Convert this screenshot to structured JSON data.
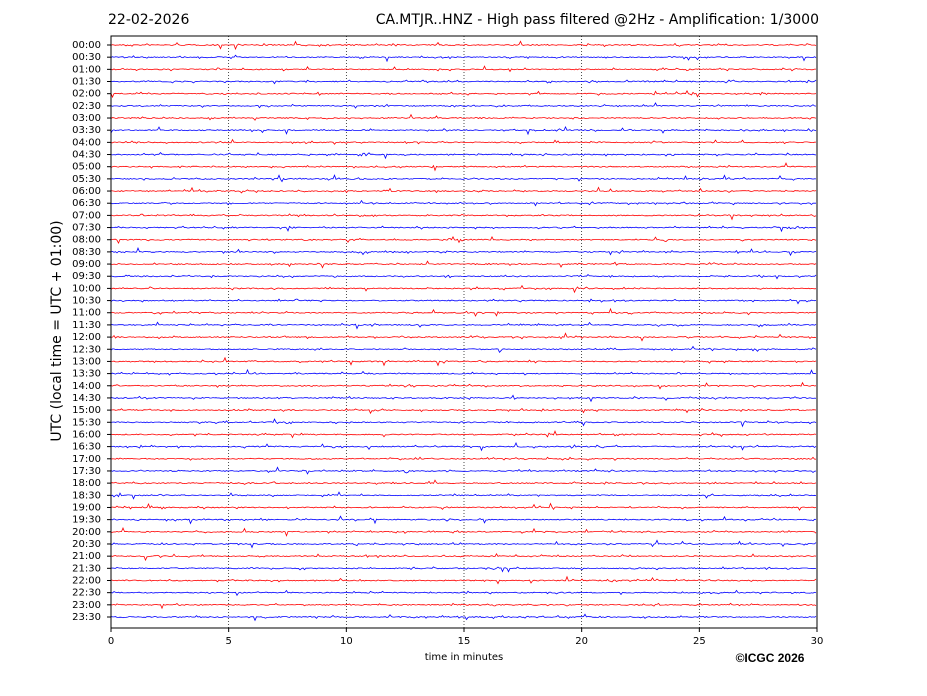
{
  "chart_data": {
    "type": "helicorder",
    "date": "22-02-2026",
    "title": "CA.MTJR..HNZ - High pass filtered @2Hz - Amplification: 1/3000",
    "ylabel": "UTC (local time = UTC + 01:00)",
    "xlabel": "time in minutes",
    "credit": "©ICGC 2026",
    "categories": [
      "00:00",
      "00:30",
      "01:00",
      "01:30",
      "02:00",
      "02:30",
      "03:00",
      "03:30",
      "04:00",
      "04:30",
      "05:00",
      "05:30",
      "06:00",
      "06:30",
      "07:00",
      "07:30",
      "08:00",
      "08:30",
      "09:00",
      "09:30",
      "10:00",
      "10:30",
      "11:00",
      "11:30",
      "12:00",
      "12:30",
      "13:00",
      "13:30",
      "14:00",
      "14:30",
      "15:00",
      "15:30",
      "16:00",
      "16:30",
      "17:00",
      "17:30",
      "18:00",
      "18:30",
      "19:00",
      "19:30",
      "20:00",
      "20:30",
      "21:00",
      "21:30",
      "22:00",
      "22:30",
      "23:00",
      "23:30"
    ],
    "trace_colors": [
      "#ff0000",
      "#0000ff"
    ],
    "xlim": [
      0,
      30
    ],
    "xticks": [
      0,
      5,
      10,
      15,
      20,
      25,
      30
    ],
    "grid": true
  }
}
